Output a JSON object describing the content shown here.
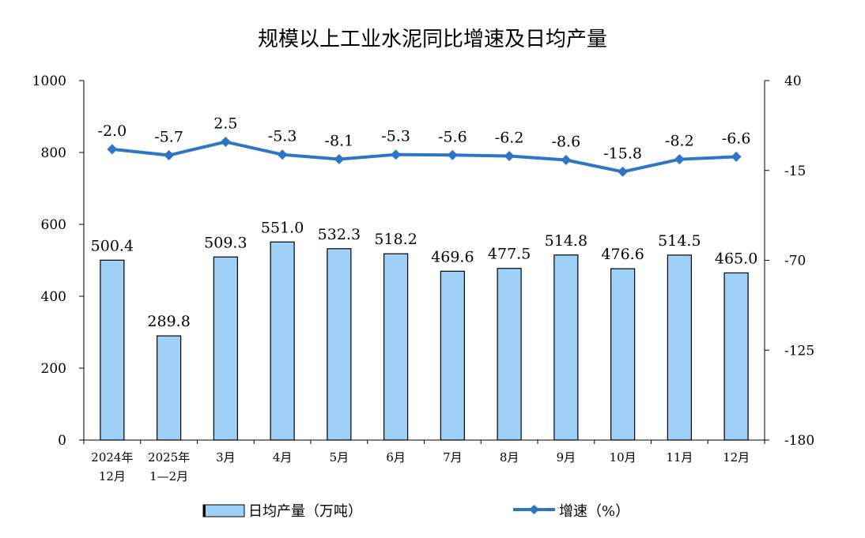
{
  "chart_data": {
    "type": "bar+line",
    "title": "规模以上工业水泥同比增速及日均产量",
    "categories": [
      [
        "2024年",
        "12月"
      ],
      [
        "2025年",
        "1—2月"
      ],
      [
        "3月"
      ],
      [
        "4月"
      ],
      [
        "5月"
      ],
      [
        "6月"
      ],
      [
        "7月"
      ],
      [
        "8月"
      ],
      [
        "9月"
      ],
      [
        "10月"
      ],
      [
        "11月"
      ],
      [
        "12月"
      ]
    ],
    "series": [
      {
        "name": "日均产量（万吨）",
        "type": "bar",
        "axis": "left",
        "values": [
          500.4,
          289.8,
          509.3,
          551.0,
          532.3,
          518.2,
          469.6,
          477.5,
          514.8,
          476.6,
          514.5,
          465.0
        ],
        "labels": [
          "500.4",
          "289.8",
          "509.3",
          "551.0",
          "532.3",
          "518.2",
          "469.6",
          "477.5",
          "514.8",
          "476.6",
          "514.5",
          "465.0"
        ],
        "color": "#9fd0f7"
      },
      {
        "name": "增速（%）",
        "type": "line",
        "axis": "right",
        "values": [
          -2.0,
          -5.7,
          2.5,
          -5.3,
          -8.1,
          -5.3,
          -5.6,
          -6.2,
          -8.6,
          -15.8,
          -8.2,
          -6.6
        ],
        "labels": [
          "-2.0",
          "-5.7",
          "2.5",
          "-5.3",
          "-8.1",
          "-5.3",
          "-5.6",
          "-6.2",
          "-8.6",
          "-15.8",
          "-8.2",
          "-6.6"
        ],
        "color": "#2e75c5"
      }
    ],
    "y_left": {
      "range": [
        0,
        1000
      ],
      "ticks": [
        "0",
        "200",
        "400",
        "600",
        "800",
        "1000"
      ],
      "tick_values": [
        0,
        200,
        400,
        600,
        800,
        1000
      ]
    },
    "y_right": {
      "range": [
        -180,
        40
      ],
      "ticks": [
        "-180",
        "-125",
        "-70",
        "-15",
        "40"
      ],
      "tick_values": [
        -180,
        -125,
        -70,
        -15,
        40
      ]
    },
    "legend": {
      "placement": "bottom",
      "items": [
        "日均产量（万吨）",
        "增速（%）"
      ]
    },
    "grid": false
  }
}
